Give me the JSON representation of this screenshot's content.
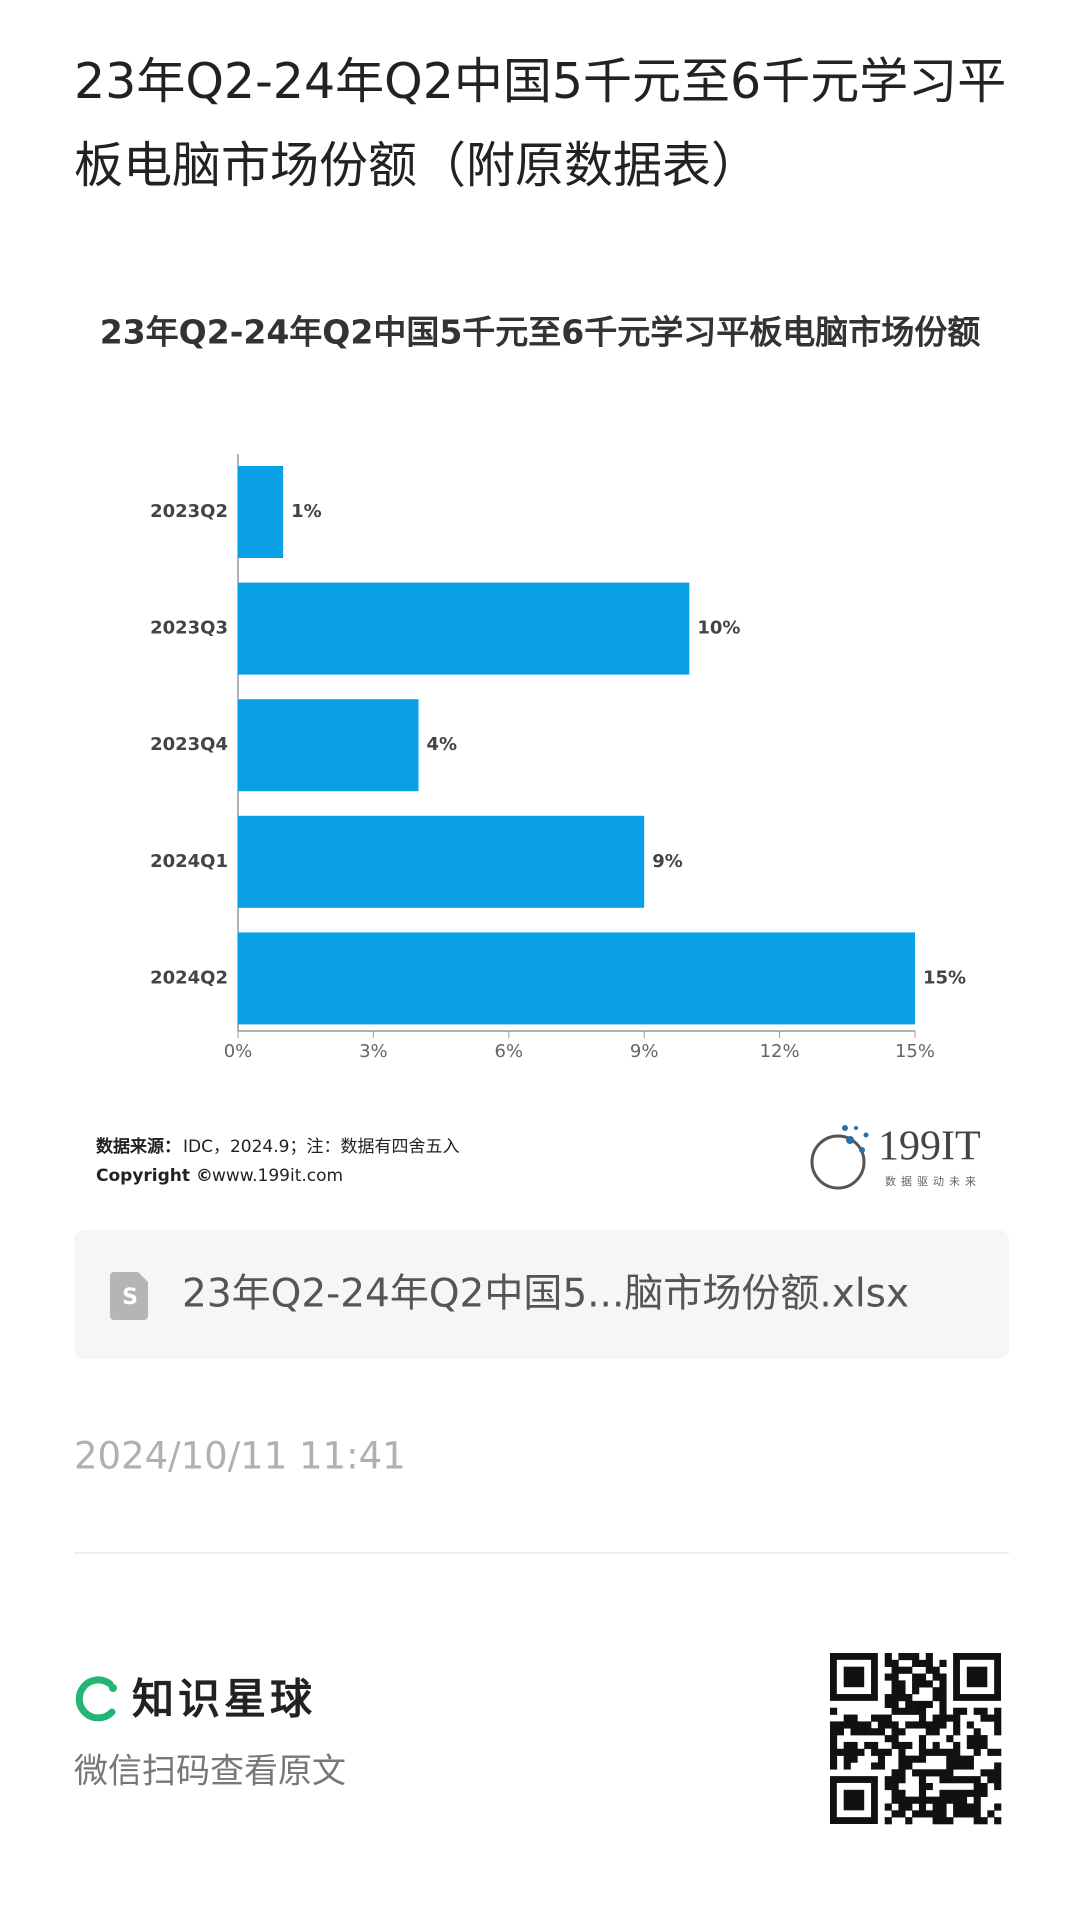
{
  "header": {
    "title": "23年Q2-24年Q2中国5千元至6千元学习平板电脑市场份额（附原数据表）"
  },
  "chart_data": {
    "type": "bar",
    "orientation": "horizontal",
    "title": "23年Q2-24年Q2中国5千元至6千元学习平板电脑市场份额",
    "categories": [
      "2023Q2",
      "2023Q3",
      "2023Q4",
      "2024Q1",
      "2024Q2"
    ],
    "values": [
      1,
      10,
      4,
      9,
      15
    ],
    "value_labels": [
      "1%",
      "10%",
      "4%",
      "9%",
      "15%"
    ],
    "color": "#0aa0e6",
    "xlim": [
      0,
      15
    ],
    "xticks": [
      {
        "value": 0,
        "label": "0%"
      },
      {
        "value": 3,
        "label": "3%"
      },
      {
        "value": 6,
        "label": "6%"
      },
      {
        "value": 9,
        "label": "9%"
      },
      {
        "value": 12,
        "label": "12%"
      },
      {
        "value": 15,
        "label": "15%"
      }
    ]
  },
  "source": {
    "label": "数据来源：",
    "text": "IDC，2024.9；注：数据有四舍五入",
    "copyright": "Copyright ©",
    "site": "www.199it.com"
  },
  "logo": {
    "name": "199IT",
    "slogan": "数据驱动未来"
  },
  "file": {
    "name": "23年Q2-24年Q2中国5...脑市场份额.xlsx"
  },
  "date": "2024/10/11 11:41",
  "footer": {
    "brand": "知识星球",
    "caption": "微信扫码查看原文"
  }
}
